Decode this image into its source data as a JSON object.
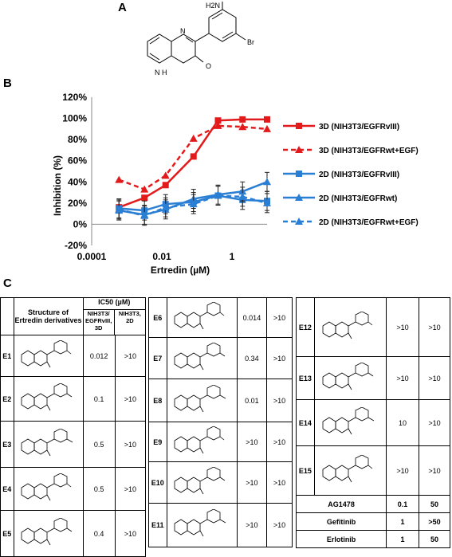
{
  "panels": {
    "a": "A",
    "b": "B",
    "c": "C"
  },
  "molecule_a": {
    "amine": "H2N",
    "halogen": "Br",
    "nh": "N\nH",
    "oxo": "O",
    "n_label": "N"
  },
  "chart_data": {
    "type": "line",
    "ylabel": "Inhibition (%)",
    "xlabel": "Ertredin (µM)",
    "xscale": "log",
    "xlim": [
      0.0001,
      10
    ],
    "ylim": [
      -20,
      120
    ],
    "xticks": [
      "0.0001",
      "0.01",
      "1"
    ],
    "yticks": [
      "-20%",
      "0%",
      "20%",
      "40%",
      "60%",
      "80%",
      "100%",
      "120%"
    ],
    "x": [
      0.0006,
      0.0032,
      0.0128,
      0.08,
      0.4,
      2,
      10
    ],
    "series": [
      {
        "name": "3D (NIH3T3/EGFRvIII)",
        "color": "#e31a1c",
        "dash": false,
        "marker": "square",
        "values": [
          16,
          25,
          37,
          64,
          98,
          99,
          99
        ]
      },
      {
        "name": "3D (NIH3T3/EGFRwt+EGF)",
        "color": "#e31a1c",
        "dash": true,
        "marker": "triangle",
        "values": [
          42,
          33,
          46,
          81,
          93,
          92,
          90
        ]
      },
      {
        "name": "2D (NIH3T3/EGFRvIII)",
        "color": "#2a7fd4",
        "dash": false,
        "marker": "square",
        "values": [
          15,
          13,
          19,
          21,
          27,
          23,
          22
        ]
      },
      {
        "name": "2D (NIH3T3/EGFRwt)",
        "color": "#2a7fd4",
        "dash": false,
        "marker": "triangle",
        "values": [
          13,
          9,
          14,
          24,
          28,
          31,
          40
        ]
      },
      {
        "name": "2D (NIH3T3/EGFRwt+EGF)",
        "color": "#2a7fd4",
        "dash": true,
        "marker": "triangle",
        "values": [
          14,
          8,
          16,
          19,
          27,
          26,
          20
        ]
      }
    ],
    "legend": "right"
  },
  "table": {
    "header": {
      "structure": "Structure of Ertredin derivatives",
      "ic50": "IC50",
      "unit": "(µM)",
      "col3d": "NIH3T3/ EGFRvIII, 3D",
      "col2d": "NIH3T3, 2D"
    },
    "left": [
      {
        "id": "E1",
        "v3d": "0.012",
        "v2d": ">10"
      },
      {
        "id": "E2",
        "v3d": "0.1",
        "v2d": ">10"
      },
      {
        "id": "E3",
        "v3d": "0.5",
        "v2d": ">10"
      },
      {
        "id": "E4",
        "v3d": "0.5",
        "v2d": ">10"
      },
      {
        "id": "E5",
        "v3d": "0.4",
        "v2d": ">10"
      }
    ],
    "middle": [
      {
        "id": "E6",
        "v3d": "0.014",
        "v2d": ">10"
      },
      {
        "id": "E7",
        "v3d": "0.34",
        "v2d": ">10"
      },
      {
        "id": "E8",
        "v3d": "0.01",
        "v2d": ">10"
      },
      {
        "id": "E9",
        "v3d": ">10",
        "v2d": ">10"
      },
      {
        "id": "E10",
        "v3d": ">10",
        "v2d": ">10"
      },
      {
        "id": "E11",
        "v3d": ">10",
        "v2d": ">10"
      }
    ],
    "right": [
      {
        "id": "E12",
        "v3d": ">10",
        "v2d": ">10"
      },
      {
        "id": "E13",
        "v3d": ">10",
        "v2d": ">10"
      },
      {
        "id": "E14",
        "v3d": "10",
        "v2d": ">10"
      },
      {
        "id": "E15",
        "v3d": ">10",
        "v2d": ">10"
      }
    ],
    "references": [
      {
        "name": "AG1478",
        "v3d": "0.1",
        "v2d": "50"
      },
      {
        "name": "Gefitinib",
        "v3d": "1",
        "v2d": ">50"
      },
      {
        "name": "Erlotinib",
        "v3d": "1",
        "v2d": "50"
      }
    ]
  }
}
